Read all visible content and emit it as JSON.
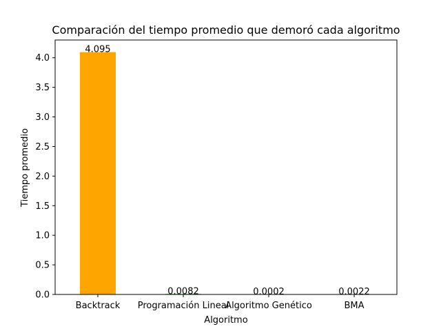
{
  "chart_data": {
    "type": "bar",
    "title": "Comparación del tiempo promedio que demoró cada algoritmo",
    "xlabel": "Algoritmo",
    "ylabel": "Tiempo promedio",
    "categories": [
      "Backtrack",
      "Programación Lineal",
      "Algoritmo Genético",
      "BMA"
    ],
    "values": [
      4.095,
      0.0082,
      0.0002,
      0.0022
    ],
    "data_labels": [
      "4.095",
      "0.0082",
      "0.0002",
      "0.0022"
    ],
    "colors": [
      "#ffa500",
      "#008000",
      "#ff0000",
      "#0000ff"
    ],
    "ylim": [
      0,
      4.3
    ],
    "yticks": [
      0.0,
      0.5,
      1.0,
      1.5,
      2.0,
      2.5,
      3.0,
      3.5,
      4.0
    ],
    "ytick_labels": [
      "0.0",
      "0.5",
      "1.0",
      "1.5",
      "2.0",
      "2.5",
      "3.0",
      "3.5",
      "4.0"
    ],
    "grid": false,
    "legend": "none"
  }
}
